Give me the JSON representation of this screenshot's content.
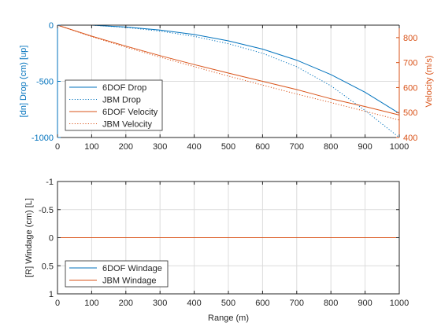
{
  "colors": {
    "blue": "#0072BD",
    "orange": "#D95319",
    "axis": "#262626",
    "grid": "#dcdcdc"
  },
  "chart_data": [
    {
      "type": "line",
      "name": "drop-velocity",
      "xlabel": "",
      "ylabel_left": "[dn] Drop (cm) [up]",
      "ylabel_right": "Velocity (m/s)",
      "xlim": [
        0,
        1000
      ],
      "ylim_left": [
        -1000,
        0
      ],
      "ylim_right": [
        400,
        850
      ],
      "xticks": [
        0,
        100,
        200,
        300,
        400,
        500,
        600,
        700,
        800,
        900,
        1000
      ],
      "yticks_left": [
        0,
        -500,
        -1000
      ],
      "yticks_right": [
        400,
        500,
        600,
        700,
        800
      ],
      "grid": true,
      "legend_position": "bottom-left",
      "x": [
        0,
        100,
        200,
        300,
        400,
        500,
        600,
        700,
        800,
        900,
        1000
      ],
      "series": [
        {
          "name": "6DOF Drop",
          "axis": "left",
          "color": "#0072BD",
          "dash": "solid",
          "values": [
            0,
            0,
            -17,
            -44,
            -83,
            -140,
            -213,
            -312,
            -440,
            -597,
            -785
          ]
        },
        {
          "name": "JBM Drop",
          "axis": "left",
          "color": "#0072BD",
          "dash": "dotted",
          "values": [
            0,
            0,
            -20,
            -53,
            -100,
            -165,
            -250,
            -370,
            -540,
            -760,
            -1000
          ]
        },
        {
          "name": "6DOF Velocity",
          "axis": "right",
          "color": "#D95319",
          "dash": "solid",
          "values": [
            850,
            806,
            766,
            728,
            692,
            658,
            625,
            592,
            555,
            524,
            490
          ]
        },
        {
          "name": "JBM Velocity",
          "axis": "right",
          "color": "#D95319",
          "dash": "dotted",
          "values": [
            850,
            804,
            762,
            722,
            684,
            646,
            610,
            574,
            540,
            505,
            470
          ]
        }
      ]
    },
    {
      "type": "line",
      "name": "windage",
      "xlabel": "Range (m)",
      "ylabel": "[R] Windage (cm) [L]",
      "xlim": [
        0,
        1000
      ],
      "ylim": [
        -1,
        1
      ],
      "y_reversed": true,
      "xticks": [
        0,
        100,
        200,
        300,
        400,
        500,
        600,
        700,
        800,
        900,
        1000
      ],
      "yticks": [
        -1,
        -0.5,
        0,
        0.5,
        1
      ],
      "grid": true,
      "legend_position": "bottom-left",
      "x": [
        0,
        1000
      ],
      "series": [
        {
          "name": "6DOF Windage",
          "color": "#0072BD",
          "dash": "solid",
          "values": [
            0,
            0
          ]
        },
        {
          "name": "JBM Windage",
          "color": "#D95319",
          "dash": "solid",
          "values": [
            0,
            0
          ]
        }
      ]
    }
  ]
}
